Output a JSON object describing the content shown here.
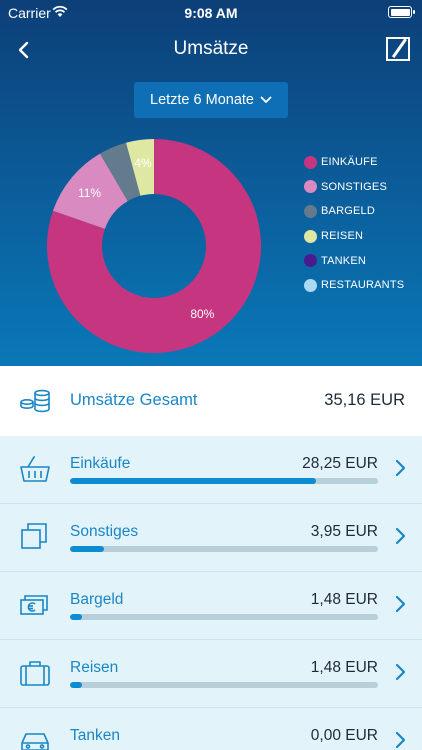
{
  "status_bar": {
    "carrier": "Carrier",
    "time": "9:08 AM"
  },
  "header": {
    "title": "Umsätze"
  },
  "period_select": {
    "label": "Letzte 6 Monate"
  },
  "chart_data": {
    "type": "pie",
    "categories": [
      "EINKÄUFE",
      "SONSTIGES",
      "BARGELD",
      "REISEN",
      "TANKEN",
      "RESTAURANTS"
    ],
    "values": [
      28.25,
      3.95,
      1.48,
      1.48,
      0.0,
      0.0
    ],
    "colors": [
      "#c6357f",
      "#d98ac1",
      "#647a8d",
      "#dfe8a3",
      "#4b1a8e",
      "#a9d9f4"
    ],
    "slice_labels": [
      "80%",
      "11%",
      "",
      "4%",
      "",
      ""
    ],
    "legend_position": "right"
  },
  "total": {
    "label": "Umsätze Gesamt",
    "value": "35,16 EUR"
  },
  "categories": [
    {
      "label": "Einkäufe",
      "amount": "28,25 EUR",
      "share": 0.8,
      "icon": "basket-icon"
    },
    {
      "label": "Sonstiges",
      "amount": "3,95 EUR",
      "share": 0.11,
      "icon": "squares-icon"
    },
    {
      "label": "Bargeld",
      "amount": "1,48 EUR",
      "share": 0.04,
      "icon": "cash-icon"
    },
    {
      "label": "Reisen",
      "amount": "1,48 EUR",
      "share": 0.04,
      "icon": "suitcase-icon"
    },
    {
      "label": "Tanken",
      "amount": "0,00 EUR",
      "share": 0,
      "icon": "car-icon"
    }
  ]
}
